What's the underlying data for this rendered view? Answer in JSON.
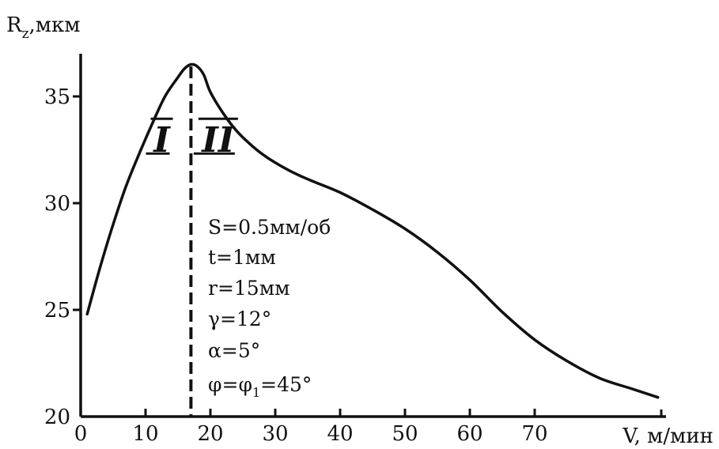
{
  "chart_data": {
    "type": "line",
    "ylabel": "R",
    "ylabel_sub": "z",
    "ylabel_unit": ",мкм",
    "xlabel": "V, м/мин",
    "xlim": [
      0,
      90
    ],
    "ylim": [
      20,
      37.5
    ],
    "x_ticks": [
      0,
      10,
      20,
      30,
      40,
      50,
      60,
      70
    ],
    "y_ticks": [
      20,
      25,
      30,
      35
    ],
    "grid": false,
    "series": [
      {
        "x": [
          1,
          3,
          5,
          7,
          9,
          11,
          13,
          15,
          16,
          17,
          18,
          19,
          20,
          22,
          24,
          26,
          28,
          30,
          33,
          36,
          40,
          45,
          50,
          55,
          60,
          65,
          70,
          75,
          80,
          85,
          89
        ],
        "y": [
          24.8,
          27.0,
          29.0,
          30.8,
          32.3,
          33.7,
          35.0,
          35.9,
          36.3,
          36.5,
          36.4,
          36.0,
          35.2,
          34.2,
          33.4,
          32.8,
          32.3,
          31.9,
          31.4,
          31.0,
          30.5,
          29.7,
          28.8,
          27.7,
          26.4,
          24.9,
          23.6,
          22.6,
          21.8,
          21.3,
          20.9
        ],
        "color": "#111111"
      }
    ],
    "divider_x": 17,
    "regions": [
      {
        "label": "I",
        "x": 12.5,
        "y": 32.4
      },
      {
        "label": "II",
        "x": 21.2,
        "y": 32.4
      }
    ],
    "parameters": {
      "s": "S=0.5мм/об",
      "t": "t=1мм",
      "r": "r=15мм",
      "gamma": "γ=12°",
      "alpha": "α=5°",
      "phi_pre": "φ=φ",
      "phi_sub": "1",
      "phi_post": "=45°"
    }
  }
}
